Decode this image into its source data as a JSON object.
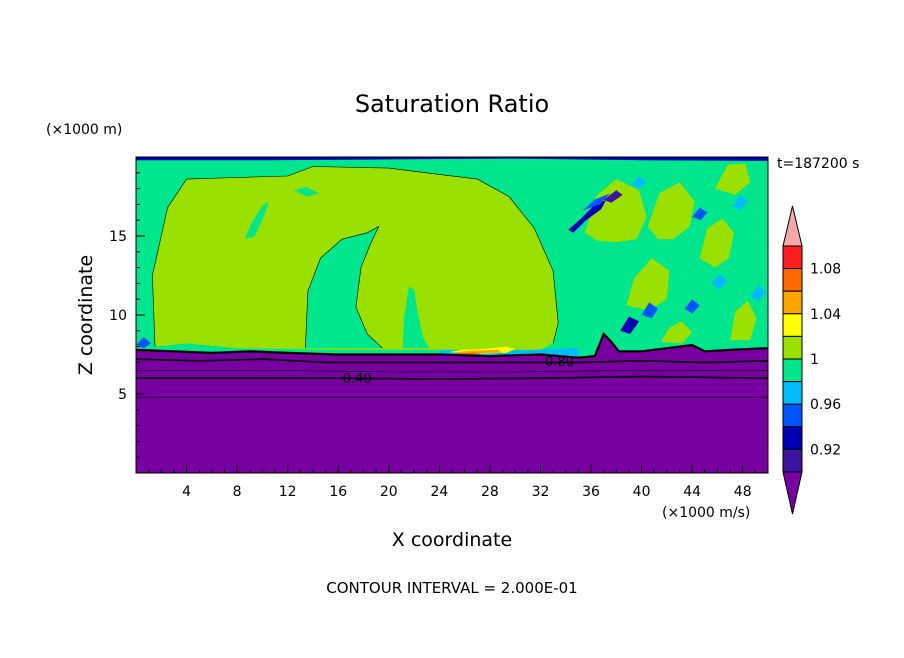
{
  "chart_data": {
    "type": "contour",
    "title": "Saturation Ratio",
    "x_units": "(×1000 m/s)",
    "y_units": "(×1000 m)",
    "xlabel": "X coordinate",
    "ylabel": "Z coordinate",
    "time_label": "t=187200 s",
    "footer": "CONTOUR INTERVAL = 2.000E-01",
    "xlim": [
      0,
      50
    ],
    "ylim": [
      0,
      20
    ],
    "x_ticks": [
      4,
      8,
      12,
      16,
      20,
      24,
      28,
      32,
      36,
      40,
      44,
      48
    ],
    "y_ticks": [
      5,
      10,
      15
    ],
    "contour_labels": [
      {
        "text": "0.40",
        "x": 17.5,
        "y": 6.0
      },
      {
        "text": "0.80",
        "x": 33.5,
        "y": 7.1
      }
    ],
    "colorbar": {
      "levels": [
        1.1,
        1.08,
        1.06,
        1.04,
        1.02,
        1.0,
        0.98,
        0.96,
        0.94,
        0.92,
        0.9
      ],
      "labels": [
        "1.08",
        "1.04",
        "1",
        "0.96",
        "0.92"
      ],
      "colors": {
        "over": "#f4a8a8",
        "1.08-1.10": "#ff1e1e",
        "1.06-1.08": "#ff6a00",
        "1.04-1.06": "#ffa500",
        "1.02-1.04": "#ffff00",
        "1.00-1.02": "#9ae000",
        "0.98-1.00": "#00e68c",
        "0.96-0.98": "#00bcff",
        "0.94-0.96": "#0055ff",
        "0.92-0.94": "#0000b4",
        "0.90-0.92": "#3c14a0",
        "under": "#7800a0"
      }
    }
  }
}
